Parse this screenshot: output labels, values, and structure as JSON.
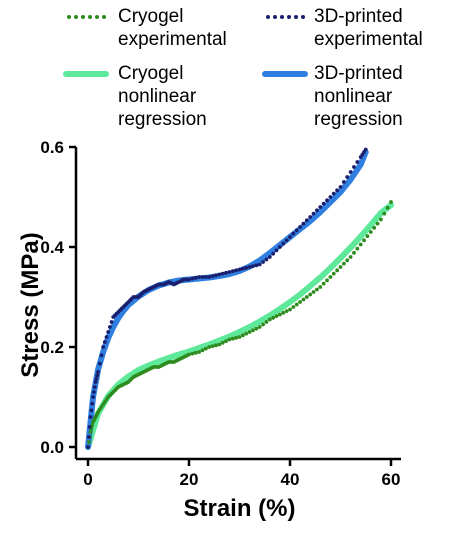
{
  "chart_data": {
    "type": "line",
    "title": "",
    "xlabel": "Strain (%)",
    "ylabel": "Stress (MPa)",
    "xlim": [
      0,
      60
    ],
    "ylim": [
      0,
      0.6
    ],
    "xticks": [
      0,
      20,
      40,
      60
    ],
    "yticks": [
      0.0,
      0.2,
      0.4,
      0.6
    ],
    "xtick_labels": [
      "0",
      "20",
      "40",
      "60"
    ],
    "ytick_labels": [
      "0.0",
      "0.2",
      "0.4",
      "0.6"
    ],
    "grid": false,
    "legend_position": "top",
    "series": [
      {
        "name": "Cryogel experimental",
        "kind": "dotted",
        "color": "#2e8b1e",
        "x": [
          0,
          0.5,
          1,
          1.5,
          2,
          3,
          4,
          5,
          6,
          7,
          8,
          9,
          10,
          11,
          12,
          13,
          14,
          15,
          16,
          17,
          18,
          19,
          20,
          22,
          24,
          26,
          28,
          30,
          32,
          34,
          36,
          38,
          40,
          42,
          44,
          46,
          48,
          50,
          52,
          54,
          56,
          58,
          60
        ],
        "y": [
          0.0,
          0.03,
          0.05,
          0.06,
          0.07,
          0.085,
          0.1,
          0.11,
          0.12,
          0.125,
          0.13,
          0.14,
          0.145,
          0.15,
          0.155,
          0.16,
          0.16,
          0.165,
          0.17,
          0.17,
          0.175,
          0.18,
          0.185,
          0.19,
          0.2,
          0.205,
          0.215,
          0.22,
          0.23,
          0.24,
          0.255,
          0.265,
          0.275,
          0.29,
          0.305,
          0.32,
          0.34,
          0.36,
          0.38,
          0.405,
          0.43,
          0.455,
          0.49
        ]
      },
      {
        "name": "3D-printed experimental",
        "kind": "dotted",
        "color": "#1a1f6e",
        "x": [
          0,
          0.5,
          1,
          1.5,
          2,
          3,
          4,
          5,
          6,
          7,
          8,
          9,
          10,
          11,
          12,
          13,
          14,
          15,
          16,
          17,
          18,
          19,
          20,
          22,
          24,
          26,
          28,
          30,
          32,
          34,
          36,
          38,
          40,
          42,
          44,
          46,
          48,
          50,
          52,
          54,
          55
        ],
        "y": [
          0.0,
          0.06,
          0.1,
          0.13,
          0.15,
          0.2,
          0.23,
          0.26,
          0.27,
          0.28,
          0.29,
          0.3,
          0.3,
          0.31,
          0.315,
          0.32,
          0.325,
          0.325,
          0.33,
          0.325,
          0.33,
          0.335,
          0.335,
          0.34,
          0.34,
          0.345,
          0.35,
          0.355,
          0.36,
          0.365,
          0.38,
          0.4,
          0.42,
          0.44,
          0.46,
          0.48,
          0.5,
          0.52,
          0.55,
          0.58,
          0.595
        ]
      },
      {
        "name": "Cryogel nonlinear regression",
        "kind": "fit",
        "color": "#5ee89a",
        "x": [
          0,
          2,
          4,
          6,
          8,
          10,
          12,
          14,
          16,
          18,
          20,
          22,
          24,
          26,
          28,
          30,
          32,
          34,
          36,
          38,
          40,
          42,
          44,
          46,
          48,
          50,
          52,
          54,
          56,
          58,
          60
        ],
        "y": [
          0.0,
          0.067,
          0.102,
          0.125,
          0.141,
          0.154,
          0.163,
          0.171,
          0.178,
          0.185,
          0.191,
          0.198,
          0.205,
          0.213,
          0.221,
          0.23,
          0.24,
          0.251,
          0.263,
          0.276,
          0.29,
          0.305,
          0.322,
          0.339,
          0.358,
          0.378,
          0.399,
          0.421,
          0.444,
          0.468,
          0.484
        ]
      },
      {
        "name": "3D-printed nonlinear regression",
        "kind": "fit",
        "color": "#2f7fe0",
        "x": [
          0,
          1,
          2,
          3,
          4,
          5,
          6,
          7,
          8,
          10,
          12,
          14,
          16,
          18,
          20,
          22,
          24,
          26,
          28,
          30,
          32,
          34,
          36,
          38,
          40,
          42,
          44,
          46,
          48,
          50,
          52,
          54,
          55
        ],
        "y": [
          0.0,
          0.1,
          0.155,
          0.19,
          0.218,
          0.24,
          0.258,
          0.272,
          0.284,
          0.301,
          0.314,
          0.323,
          0.329,
          0.333,
          0.335,
          0.337,
          0.339,
          0.342,
          0.346,
          0.352,
          0.361,
          0.373,
          0.388,
          0.404,
          0.42,
          0.436,
          0.452,
          0.47,
          0.49,
          0.51,
          0.535,
          0.565,
          0.59
        ]
      }
    ],
    "legend": [
      {
        "label": "Cryogel experimental",
        "lines": [
          "Cryogel",
          "experimental"
        ]
      },
      {
        "label": "3D-printed experimental",
        "lines": [
          "3D-printed",
          "experimental"
        ]
      },
      {
        "label": "Cryogel nonlinear regression",
        "lines": [
          "Cryogel",
          "nonlinear",
          "regression"
        ]
      },
      {
        "label": "3D-printed nonlinear regression",
        "lines": [
          "3D-printed",
          "nonlinear",
          "regression"
        ]
      }
    ]
  }
}
